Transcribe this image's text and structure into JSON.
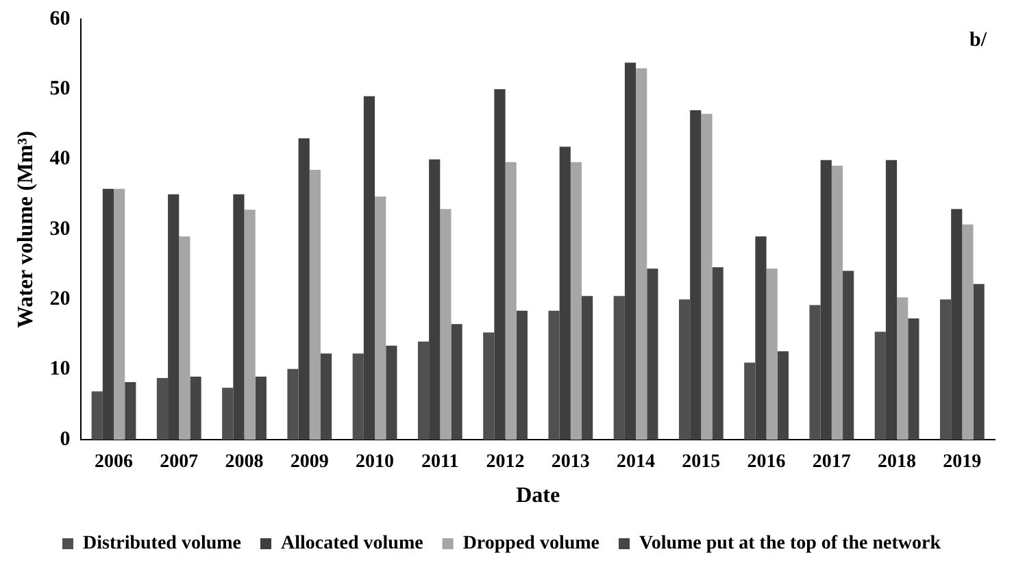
{
  "chart_data": {
    "type": "bar",
    "xlabel": "Date",
    "ylabel": "Water volume (Mm³)",
    "annotations": [
      "b/"
    ],
    "categories": [
      "2006",
      "2007",
      "2008",
      "2009",
      "2010",
      "2011",
      "2012",
      "2013",
      "2014",
      "2015",
      "2016",
      "2017",
      "2018",
      "2019"
    ],
    "series": [
      {
        "name": "Distributed volume",
        "color": "#505050",
        "values": [
          6.9,
          8.8,
          7.4,
          10.1,
          12.3,
          14,
          15.3,
          18.4,
          20.5,
          20,
          11,
          19.2,
          15.4,
          20
        ]
      },
      {
        "name": "Allocated volume",
        "color": "#3f3f3f",
        "values": [
          35.8,
          35,
          35,
          43,
          49,
          40,
          50,
          41.8,
          53.8,
          47,
          29,
          39.9,
          39.9,
          32.9
        ]
      },
      {
        "name": "Dropped volume",
        "color": "#a6a6a6",
        "values": [
          35.8,
          29,
          32.8,
          38.5,
          34.7,
          32.9,
          39.6,
          39.6,
          53,
          46.5,
          24.4,
          39.1,
          20.3,
          30.7
        ]
      },
      {
        "name": "Volume put at the top of the network",
        "color": "#454545",
        "values": [
          8.2,
          9,
          9,
          12.3,
          13.4,
          16.5,
          18.4,
          20.5,
          24.4,
          24.6,
          12.6,
          24.1,
          17.3,
          22.2
        ]
      }
    ],
    "ylim": [
      0,
      60
    ],
    "yticks": [
      0,
      10,
      20,
      30,
      40,
      50,
      60
    ],
    "grid": false,
    "legend": "bottom"
  }
}
